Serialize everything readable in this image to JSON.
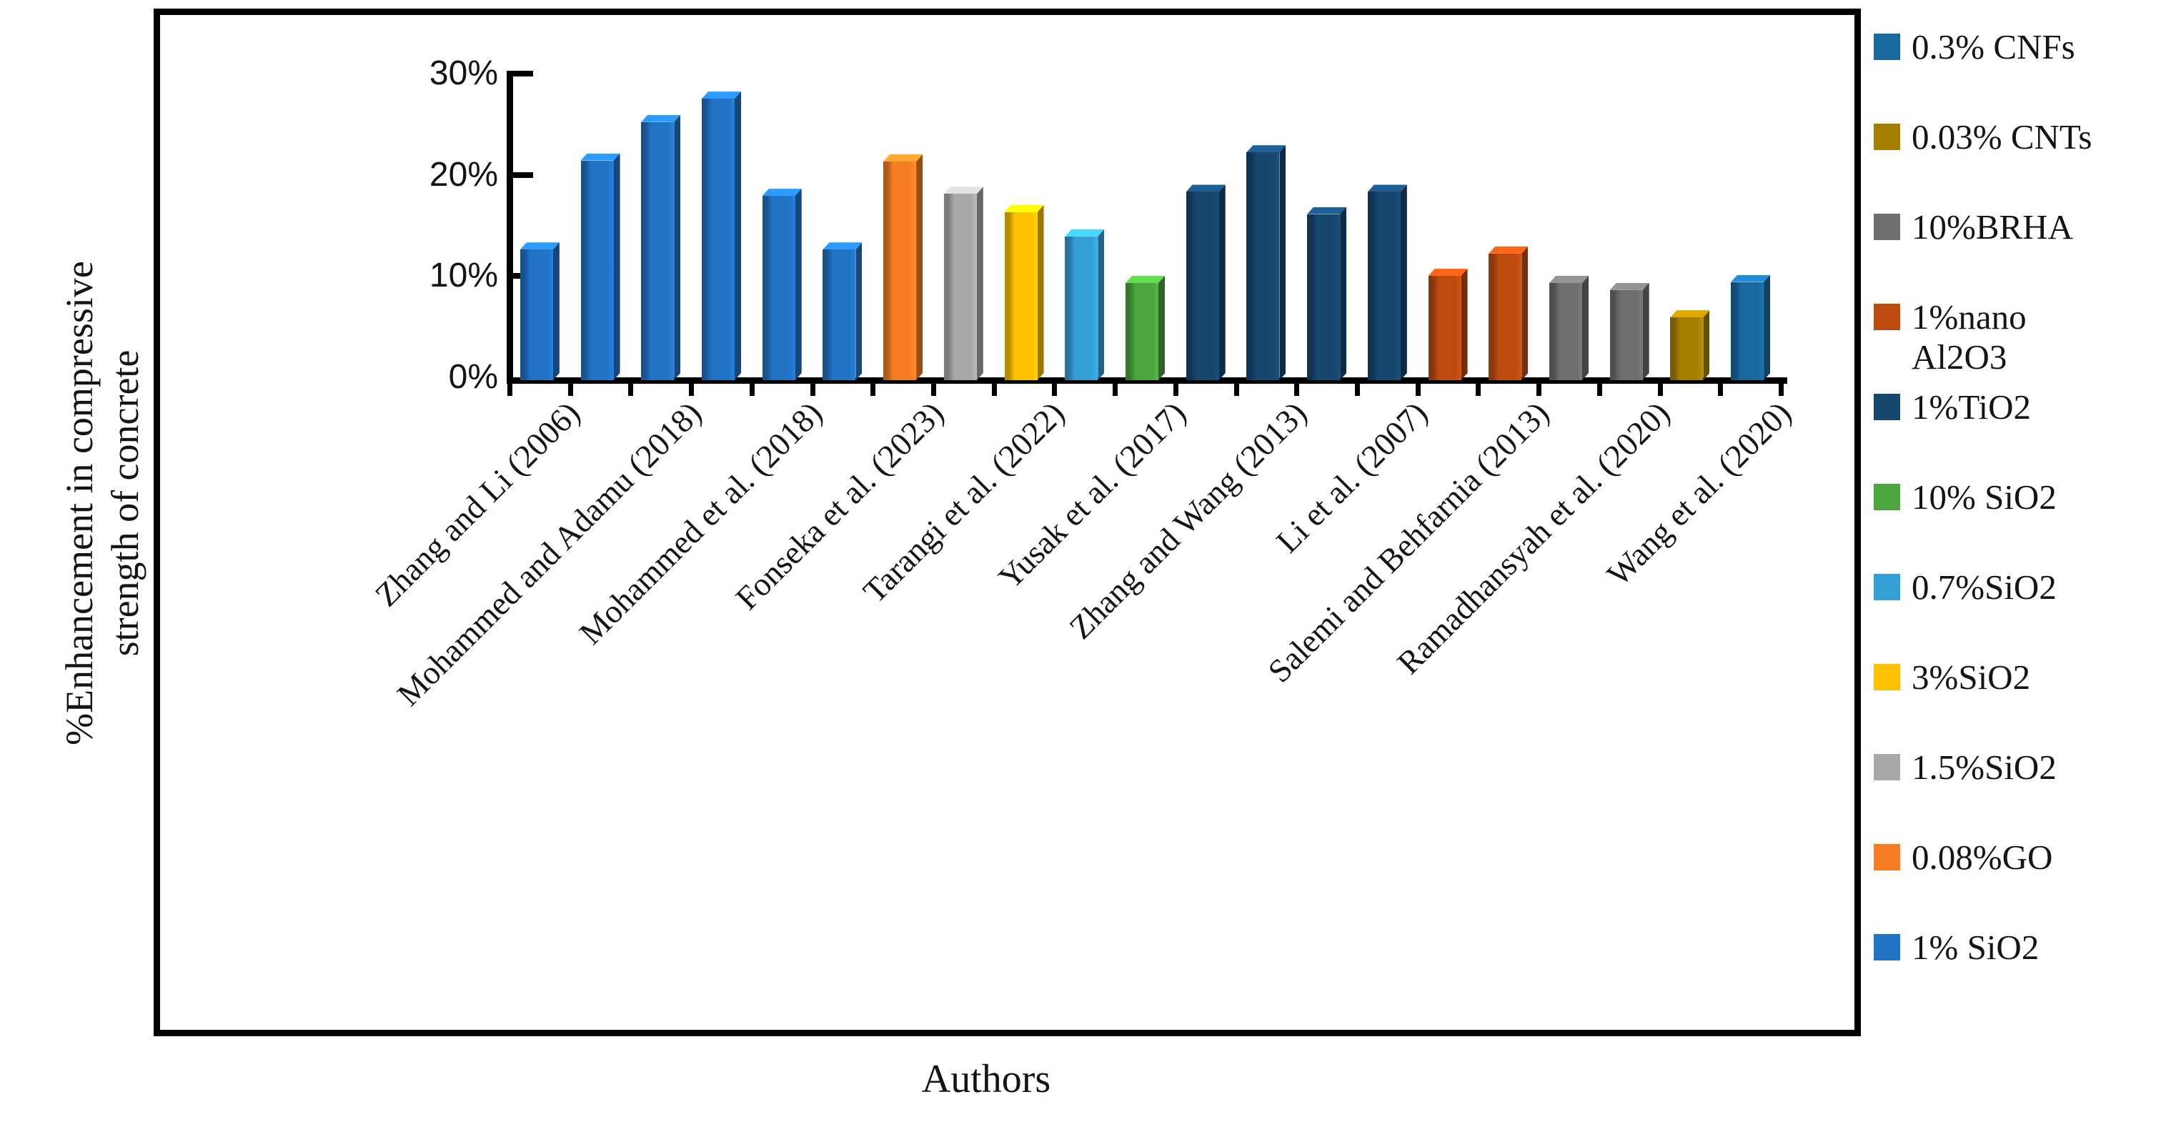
{
  "figure": {
    "y_axis_title_line1": "%Enhancement in compressive",
    "y_axis_title_line2": "strength of concrete",
    "x_axis_title": "Authors"
  },
  "chart_data": {
    "type": "bar",
    "title": "",
    "xlabel": "Authors",
    "ylabel": "%Enhancement in compressive strength of concrete",
    "ylim": [
      0,
      30
    ],
    "grid": false,
    "legend_position": "right-outside",
    "y_ticks": [
      {
        "value": 0,
        "label": "0%"
      },
      {
        "value": 10,
        "label": "10%"
      },
      {
        "value": 20,
        "label": "20%"
      },
      {
        "value": 30,
        "label": "30%"
      }
    ],
    "author_labels": [
      "Zhang and Li (2006)",
      "Mohammed and Adamu (2018)",
      "Mohammed et al. (2018)",
      "Fonseka et al. (2023)",
      "Tarangi et al. (2022)",
      "Yusak et al. (2017)",
      "Zhang and Wang (2013)",
      "Li et al. (2007)",
      "Salemi and Behfarnia (2013)",
      "Ramadhansyah et al. (2020)",
      "Wang et al. (2020)"
    ],
    "series_colors": {
      "0.3% CNFs": "#19689E",
      "0.03% CNTs": "#A57E00",
      "10%BRHA": "#6E6E6E",
      "1%nano Al2O3": "#BD4B10",
      "1%TiO2": "#17466F",
      "10% SiO2": "#4CA53F",
      "0.7%SiO2": "#359FD8",
      "3%SiO2": "#FFC000",
      "1.5%SiO2": "#A8A8A8",
      "0.08%GO": "#F57E25",
      "1% SiO2": "#2173C6"
    },
    "bars": [
      {
        "series": "1% SiO2",
        "value": 12.9
      },
      {
        "series": "1% SiO2",
        "value": 21.7
      },
      {
        "series": "1% SiO2",
        "value": 25.5
      },
      {
        "series": "1% SiO2",
        "value": 27.8
      },
      {
        "series": "1% SiO2",
        "value": 18.2
      },
      {
        "series": "1% SiO2",
        "value": 12.9
      },
      {
        "series": "0.08%GO",
        "value": 21.6
      },
      {
        "series": "1.5%SiO2",
        "value": 18.4
      },
      {
        "series": "3%SiO2",
        "value": 16.6
      },
      {
        "series": "0.7%SiO2",
        "value": 14.2
      },
      {
        "series": "10% SiO2",
        "value": 9.6
      },
      {
        "series": "1%TiO2",
        "value": 18.6
      },
      {
        "series": "1%TiO2",
        "value": 22.5
      },
      {
        "series": "1%TiO2",
        "value": 16.4
      },
      {
        "series": "1%TiO2",
        "value": 18.6
      },
      {
        "series": "1%nano Al2O3",
        "value": 10.3
      },
      {
        "series": "1%nano Al2O3",
        "value": 12.5
      },
      {
        "series": "10%BRHA",
        "value": 9.6
      },
      {
        "series": "10%BRHA",
        "value": 8.9
      },
      {
        "series": "0.03% CNTs",
        "value": 6.2
      },
      {
        "series": "0.3% CNFs",
        "value": 9.7
      }
    ]
  },
  "legend": {
    "items": [
      {
        "label": "0.3% CNFs",
        "color": "#19689E"
      },
      {
        "label": "0.03% CNTs",
        "color": "#A57E00"
      },
      {
        "label": "10%BRHA",
        "color": "#6E6E6E"
      },
      {
        "label": "1%nano\nAl2O3",
        "color": "#BD4B10"
      },
      {
        "label": "1%TiO2",
        "color": "#17466F"
      },
      {
        "label": "10% SiO2",
        "color": "#4CA53F"
      },
      {
        "label": "0.7%SiO2",
        "color": "#359FD8"
      },
      {
        "label": "3%SiO2",
        "color": "#FFC000"
      },
      {
        "label": "1.5%SiO2",
        "color": "#A8A8A8"
      },
      {
        "label": "0.08%GO",
        "color": "#F57E25"
      },
      {
        "label": "1% SiO2",
        "color": "#2173C6"
      }
    ]
  }
}
